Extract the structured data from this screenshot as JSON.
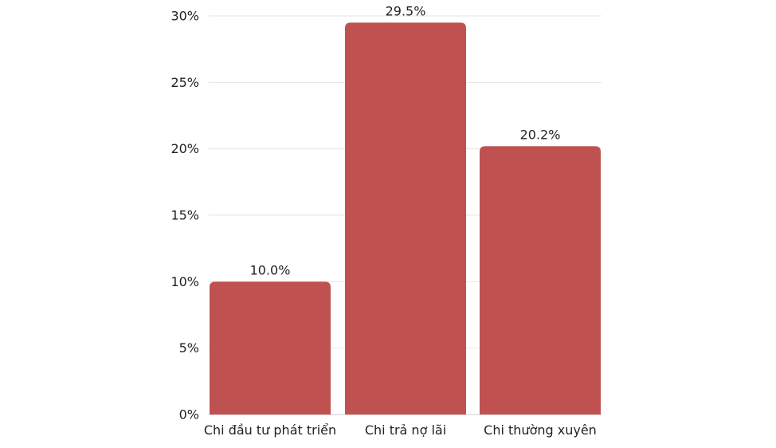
{
  "chart_data": {
    "type": "bar",
    "categories": [
      "Chi đầu tư phát triển",
      "Chi trả nợ lãi",
      "Chi thường xuyên"
    ],
    "values": [
      10.0,
      29.5,
      20.2
    ],
    "value_labels": [
      "10.0%",
      "29.5%",
      "20.2%"
    ],
    "y_ticks": [
      0,
      5,
      10,
      15,
      20,
      25,
      30
    ],
    "y_tick_labels": [
      "0%",
      "5%",
      "10%",
      "15%",
      "20%",
      "25%",
      "30%"
    ],
    "ylim": [
      0,
      30
    ],
    "title": "",
    "xlabel": "",
    "ylabel": "",
    "grid": true,
    "legend": "none",
    "bar_color": "#bf5250",
    "grid_color": "#e6e6e6",
    "text_color": "#222222"
  }
}
